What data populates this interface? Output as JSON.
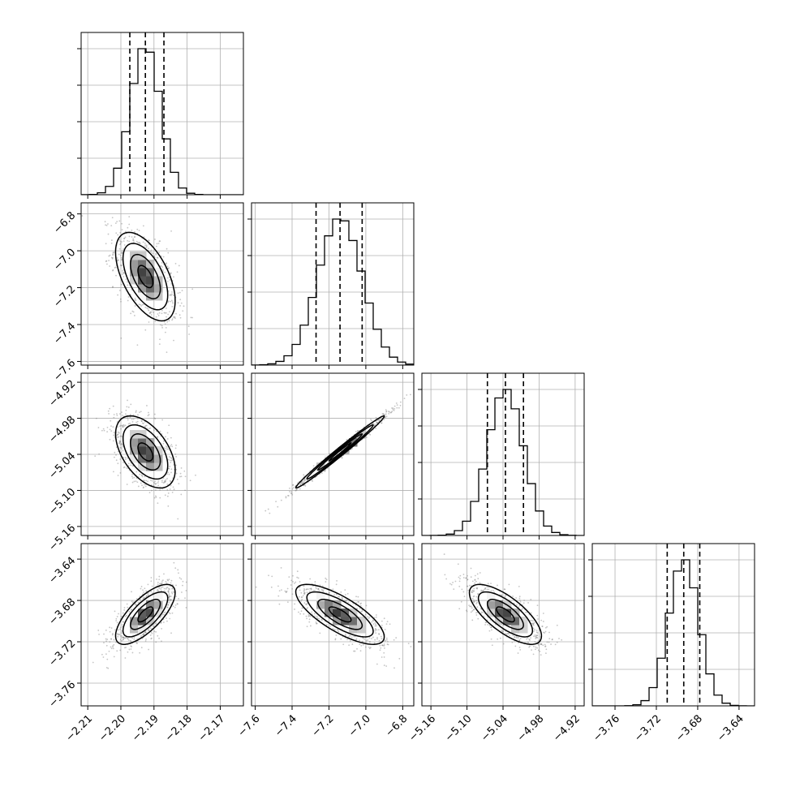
{
  "chart_data": {
    "type": "corner",
    "n_params": 4,
    "grid": true,
    "colors": {
      "line": "#000000",
      "grid": "#b0b0b0",
      "points": "#7f7f7f"
    },
    "params": [
      {
        "range": [
          -2.212,
          -2.163
        ],
        "ticks": [
          -2.21,
          -2.2,
          -2.19,
          -2.18,
          -2.17
        ],
        "tick_labels": [
          "−2.21",
          "−2.20",
          "−2.19",
          "−2.18",
          "−2.17"
        ],
        "mean": -2.1926,
        "sigma": 0.0045,
        "quantiles": [
          -2.1973,
          -2.1926,
          -2.187
        ]
      },
      {
        "range": [
          -7.62,
          -6.74
        ],
        "ticks": [
          -7.6,
          -7.4,
          -7.2,
          -7.0,
          -6.8
        ],
        "tick_labels": [
          "−7.6",
          "−7.4",
          "−7.2",
          "−7.0",
          "−6.8"
        ],
        "mean": -7.14,
        "sigma": 0.12,
        "quantiles": [
          -7.27,
          -7.14,
          -7.02
        ]
      },
      {
        "range": [
          -5.175,
          -4.905
        ],
        "ticks": [
          -5.16,
          -5.1,
          -5.04,
          -4.98,
          -4.92
        ],
        "tick_labels": [
          "−5.16",
          "−5.10",
          "−5.04",
          "−4.98",
          "−4.92"
        ],
        "mean": -5.036,
        "sigma": 0.03,
        "quantiles": [
          -5.066,
          -5.036,
          -5.006
        ]
      },
      {
        "range": [
          -3.782,
          -3.625
        ],
        "ticks": [
          -3.76,
          -3.72,
          -3.68,
          -3.64
        ],
        "tick_labels": [
          "−3.76",
          "−3.72",
          "−3.68",
          "−3.64"
        ],
        "mean": -3.6935,
        "sigma": 0.0145,
        "quantiles": [
          -3.7095,
          -3.6935,
          -3.678
        ]
      }
    ],
    "correlations": [
      [
        1.0,
        -0.55,
        -0.5,
        0.72
      ],
      [
        -0.55,
        1.0,
        0.99,
        -0.75
      ],
      [
        -0.5,
        0.99,
        1.0,
        -0.72
      ],
      [
        0.72,
        -0.75,
        -0.72,
        1.0
      ]
    ],
    "contour_levels_sigma": [
      0.5,
      1.0,
      1.5,
      2.0
    ]
  }
}
